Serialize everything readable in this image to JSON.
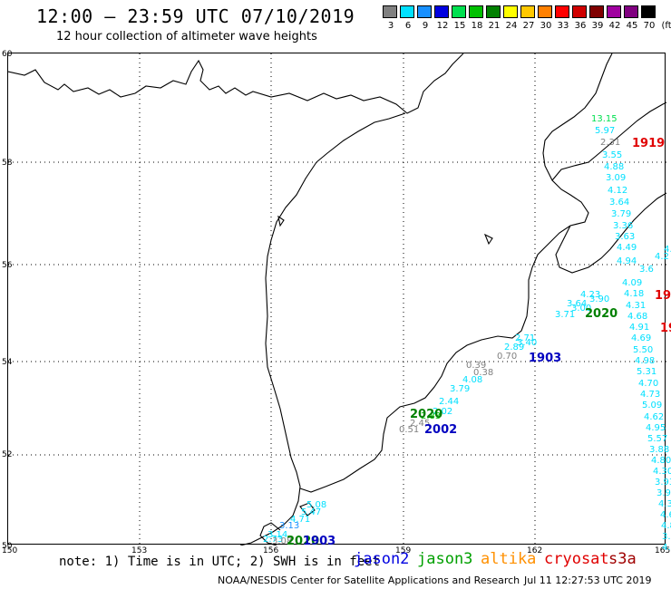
{
  "header": {
    "title": "12:00 – 23:59 UTC 07/10/2019",
    "subtitle": "12 hour collection of altimeter wave heights"
  },
  "legend": {
    "items": [
      {
        "label": "3",
        "color": "#808080"
      },
      {
        "label": "6",
        "color": "#00e0ff"
      },
      {
        "label": "9",
        "color": "#1890ff"
      },
      {
        "label": "12",
        "color": "#0000e0"
      },
      {
        "label": "15",
        "color": "#00e050"
      },
      {
        "label": "18",
        "color": "#00c000"
      },
      {
        "label": "21",
        "color": "#008000"
      },
      {
        "label": "24",
        "color": "#ffff00"
      },
      {
        "label": "27",
        "color": "#ffc800"
      },
      {
        "label": "30",
        "color": "#ff8000"
      },
      {
        "label": "33",
        "color": "#ff0000"
      },
      {
        "label": "36",
        "color": "#d00000"
      },
      {
        "label": "39",
        "color": "#800000"
      },
      {
        "label": "42",
        "color": "#a000a0"
      },
      {
        "label": "45",
        "color": "#800080"
      },
      {
        "label": "70",
        "color": "#000000"
      }
    ],
    "unit": "(ft)"
  },
  "map": {
    "lat_ticks": [
      "50",
      "52",
      "54",
      "56",
      "58",
      "60"
    ],
    "lon_ticks": [
      "150",
      "153",
      "156",
      "159",
      "162",
      "165"
    ],
    "wave_labels": [
      {
        "text": "13.15",
        "color": "#00e050"
      },
      {
        "text": "5.97",
        "color": "#00e0ff"
      },
      {
        "text": "2.31",
        "color": "#808080"
      },
      {
        "text": "3.55",
        "color": "#00e0ff"
      },
      {
        "text": "4.88",
        "color": "#00e0ff"
      },
      {
        "text": "3.09",
        "color": "#00e0ff"
      },
      {
        "text": "4.12",
        "color": "#00e0ff"
      },
      {
        "text": "3.64",
        "color": "#00e0ff"
      },
      {
        "text": "3.79",
        "color": "#00e0ff"
      },
      {
        "text": "3.36",
        "color": "#00e0ff"
      },
      {
        "text": "3.63",
        "color": "#00e0ff"
      },
      {
        "text": "4.49",
        "color": "#00e0ff"
      },
      {
        "text": "4.94",
        "color": "#00e0ff"
      },
      {
        "text": "4.09",
        "color": "#00e0ff"
      },
      {
        "text": "4.18",
        "color": "#00e0ff"
      },
      {
        "text": "4.31",
        "color": "#00e0ff"
      },
      {
        "text": "4.68",
        "color": "#00e0ff"
      },
      {
        "text": "4.91",
        "color": "#00e0ff"
      },
      {
        "text": "4.69",
        "color": "#00e0ff"
      },
      {
        "text": "5.50",
        "color": "#00e0ff"
      },
      {
        "text": "4.98",
        "color": "#00e0ff"
      },
      {
        "text": "5.31",
        "color": "#00e0ff"
      },
      {
        "text": "4.70",
        "color": "#00e0ff"
      },
      {
        "text": "4.73",
        "color": "#00e0ff"
      },
      {
        "text": "5.09",
        "color": "#00e0ff"
      },
      {
        "text": "4.62",
        "color": "#00e0ff"
      },
      {
        "text": "4.95",
        "color": "#00e0ff"
      },
      {
        "text": "5.57",
        "color": "#00e0ff"
      },
      {
        "text": "3.88",
        "color": "#00e0ff"
      },
      {
        "text": "4.80",
        "color": "#00e0ff"
      },
      {
        "text": "4.30",
        "color": "#00e0ff"
      },
      {
        "text": "3.93",
        "color": "#00e0ff"
      },
      {
        "text": "3.96",
        "color": "#00e0ff"
      },
      {
        "text": "4.3",
        "color": "#00e0ff"
      },
      {
        "text": "4.6",
        "color": "#00e0ff"
      },
      {
        "text": "4.8",
        "color": "#00e0ff"
      },
      {
        "text": "3.",
        "color": "#00e0ff"
      },
      {
        "text": "4.",
        "color": "#00e0ff"
      },
      {
        "text": "4.23",
        "color": "#00e0ff"
      },
      {
        "text": "3.64",
        "color": "#00e0ff"
      },
      {
        "text": "3.71",
        "color": "#00e0ff"
      },
      {
        "text": "3.00",
        "color": "#00e0ff"
      },
      {
        "text": "3.90",
        "color": "#00e0ff"
      },
      {
        "text": "2.71",
        "color": "#00e0ff"
      },
      {
        "text": "2.89",
        "color": "#00e0ff"
      },
      {
        "text": "3.40",
        "color": "#00e0ff"
      },
      {
        "text": "0.70",
        "color": "#808080"
      },
      {
        "text": "0.39",
        "color": "#808080"
      },
      {
        "text": "0.38",
        "color": "#808080"
      },
      {
        "text": "4.08",
        "color": "#00e0ff"
      },
      {
        "text": "3.79",
        "color": "#00e0ff"
      },
      {
        "text": "2.44",
        "color": "#00e0ff"
      },
      {
        "text": "2.02",
        "color": "#00e0ff"
      },
      {
        "text": "2.83",
        "color": "#00c000"
      },
      {
        "text": "2.45",
        "color": "#808080"
      },
      {
        "text": "0.51",
        "color": "#808080"
      },
      {
        "text": "5.08",
        "color": "#00e0ff"
      },
      {
        "text": "5.47",
        "color": "#00e0ff"
      },
      {
        "text": "4.71",
        "color": "#00e0ff"
      },
      {
        "text": "3.13",
        "color": "#1890ff"
      },
      {
        "text": "3.14",
        "color": "#00e0ff"
      },
      {
        "text": "2.73",
        "color": "#00e0ff"
      },
      {
        "text": "3.08",
        "color": "#808080"
      },
      {
        "text": "4.4",
        "color": "#00e0ff"
      },
      {
        "text": "4.2",
        "color": "#00e0ff"
      },
      {
        "text": "3.6",
        "color": "#00e0ff"
      }
    ],
    "pass_labels": [
      {
        "text": "1919",
        "color": "#e00000"
      },
      {
        "text": "19",
        "color": "#e00000"
      },
      {
        "text": "19",
        "color": "#e00000"
      },
      {
        "text": "2020",
        "color": "#008000"
      },
      {
        "text": "1903",
        "color": "#0000c0"
      },
      {
        "text": "2002",
        "color": "#0000c0"
      },
      {
        "text": "2020",
        "color": "#008000"
      },
      {
        "text": "2020",
        "color": "#008000"
      },
      {
        "text": "1903",
        "color": "#0000c0"
      }
    ]
  },
  "footer": {
    "note": "note: 1) Time is in UTC; 2) SWH is in feet",
    "satellites": [
      {
        "name": "jason2",
        "color": "#0000e0"
      },
      {
        "name": "jason3",
        "color": "#00a000"
      },
      {
        "name": "altika",
        "color": "#ff9000"
      },
      {
        "name": "cryosat",
        "color": "#e00000"
      },
      {
        "name": "s3a",
        "color": "#a00000"
      }
    ],
    "credit": "NOAA/NESDIS Center for Satellite Applications and Research",
    "timestamp": "Jul 11 12:27:53 UTC 2019"
  }
}
